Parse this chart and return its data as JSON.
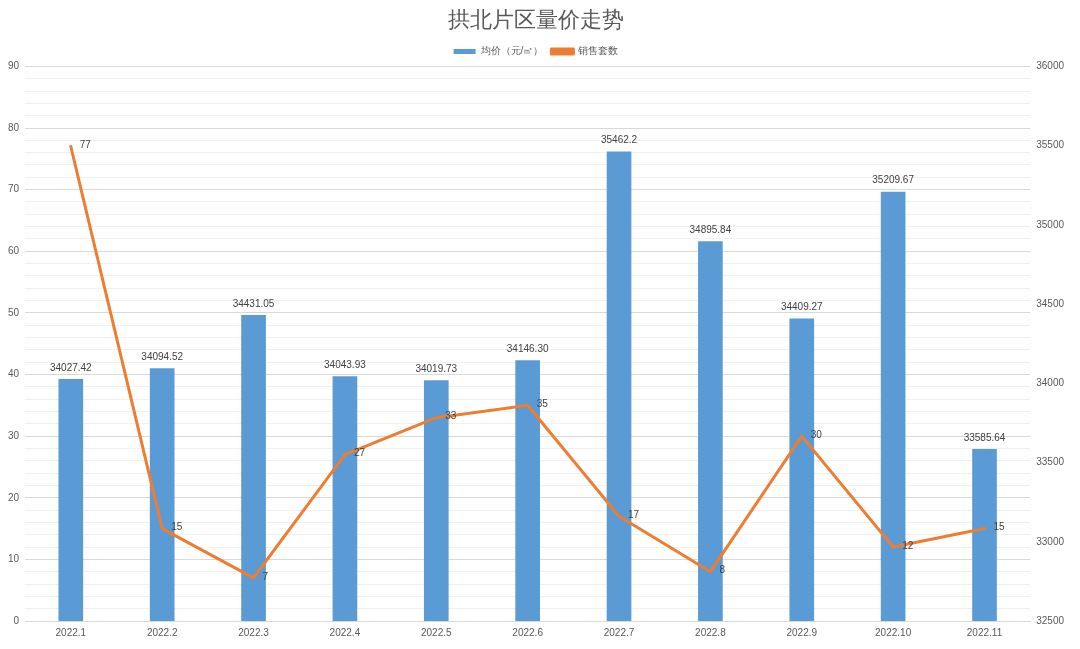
{
  "chart_data": {
    "type": "bar",
    "title": "拱北片区量价走势",
    "categories": [
      "2022.1",
      "2022.2",
      "2022.3",
      "2022.4",
      "2022.5",
      "2022.6",
      "2022.7",
      "2022.8",
      "2022.9",
      "2022.10",
      "2022.11"
    ],
    "series": [
      {
        "name": "均价（元/㎡）",
        "axis": "y2",
        "color": "#5b9bd5",
        "values": [
          34027.42,
          34094.52,
          34431.05,
          34043.93,
          34019.73,
          34146.3,
          35462.2,
          34895.84,
          34409.27,
          35209.67,
          33585.64
        ],
        "value_labels": [
          "34027.42",
          "34094.52",
          "34431.05",
          "34043.93",
          "34019.73",
          "34146.30",
          "35462.2",
          "34895.84",
          "34409.27",
          "35209.67",
          "33585.64"
        ]
      },
      {
        "name": "销售套数",
        "type": "line",
        "color": "#ed7d31",
        "values": [
          77,
          15,
          7,
          27,
          33,
          35,
          17,
          8,
          30,
          12,
          15
        ],
        "value_labels": [
          "77",
          "15",
          "7",
          "27",
          "33",
          "35",
          "17",
          "8",
          "30",
          "12",
          "15"
        ]
      }
    ],
    "ylim": [
      0,
      90
    ],
    "yticks": [
      0,
      {
        "value": 2,
        "label": null
      },
      {
        "value": 4,
        "label": null
      },
      {
        "value": 6,
        "label": null
      },
      {
        "value": 8,
        "label": null
      },
      10,
      {
        "value": 12,
        "label": null
      },
      {
        "value": 14,
        "label": null
      },
      {
        "value": 16,
        "label": null
      },
      {
        "value": 18,
        "label": null
      },
      20,
      {
        "value": 22,
        "label": null
      },
      {
        "value": 24,
        "label": null
      },
      {
        "value": 26,
        "label": null
      },
      {
        "value": 28,
        "label": null
      },
      30,
      {
        "value": 32,
        "label": null
      },
      {
        "value": 34,
        "label": null
      },
      {
        "value": 36,
        "label": null
      },
      {
        "value": 38,
        "label": null
      },
      40,
      {
        "value": 42,
        "label": null
      },
      {
        "value": 44,
        "label": null
      },
      {
        "value": 46,
        "label": null
      },
      {
        "value": 48,
        "label": null
      },
      50,
      {
        "value": 52,
        "label": null
      },
      {
        "value": 54,
        "label": null
      },
      {
        "value": 56,
        "label": null
      },
      {
        "value": 58,
        "label": null
      },
      60,
      {
        "value": 62,
        "label": null
      },
      {
        "value": 64,
        "label": null
      },
      {
        "value": 66,
        "label": null
      },
      {
        "value": 68,
        "label": null
      },
      70,
      {
        "value": 72,
        "label": null
      },
      {
        "value": 74,
        "label": null
      },
      {
        "value": 76,
        "label": null
      },
      {
        "value": 78,
        "label": null
      },
      80,
      {
        "value": 82,
        "label": null
      },
      {
        "value": 84,
        "label": null
      },
      {
        "value": 86,
        "label": null
      },
      {
        "value": 88,
        "label": null
      },
      90
    ],
    "y2lim": [
      32500,
      36000
    ],
    "y2ticks": [
      32500,
      33000,
      33500,
      34000,
      34500,
      35000,
      35500,
      36000
    ],
    "grid": "y",
    "legend": "top",
    "marker": "none"
  }
}
